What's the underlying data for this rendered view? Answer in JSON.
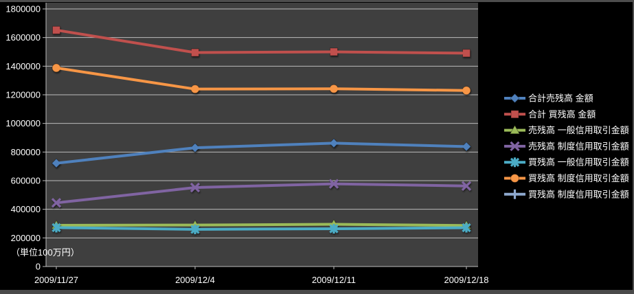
{
  "chart_data": {
    "type": "line",
    "title": "",
    "unit_label": "（単位100万円）",
    "categories": [
      "2009/11/27",
      "2009/12/4",
      "2009/12/11",
      "2009/12/18"
    ],
    "series": [
      {
        "name": "合計売残高 金額",
        "color": "#4F81BD",
        "marker": "diamond",
        "values": [
          722000,
          830000,
          862000,
          838000
        ]
      },
      {
        "name": "合計 買残高 金額",
        "color": "#C0504D",
        "marker": "square",
        "values": [
          1652000,
          1495000,
          1500000,
          1491000
        ]
      },
      {
        "name": "売残高 一般信用取引金額",
        "color": "#9BBB59",
        "marker": "triangle",
        "values": [
          288000,
          290000,
          295000,
          287000
        ]
      },
      {
        "name": "売残高 制度信用取引金額",
        "color": "#8064A2",
        "marker": "x",
        "values": [
          445000,
          552000,
          578000,
          563000
        ]
      },
      {
        "name": "買残高 一般信用取引金額",
        "color": "#4BACC6",
        "marker": "asterisk",
        "values": [
          272000,
          260000,
          264000,
          271000
        ]
      },
      {
        "name": "買残高 制度信用取引金額",
        "color": "#F79646",
        "marker": "circle",
        "values": [
          1388000,
          1240000,
          1242000,
          1230000
        ]
      },
      {
        "name": "買残高 制度信用取引金額",
        "color": "#8EA8CE",
        "marker": "plus",
        "values": []
      }
    ],
    "ylim": [
      0,
      1800000
    ],
    "y_tick_step": 200000,
    "y_tick_labels": [
      "0",
      "200000",
      "400000",
      "600000",
      "800000",
      "1000000",
      "1200000",
      "1400000",
      "1600000",
      "1800000"
    ],
    "grid": true,
    "legend_position": "right",
    "colors": {
      "page_bg": "#000000",
      "plot_bg": "#3F3F3F",
      "gridline": "#BDBDBD",
      "axis": "#BDBDBD",
      "text": "#FFFFFF"
    }
  }
}
